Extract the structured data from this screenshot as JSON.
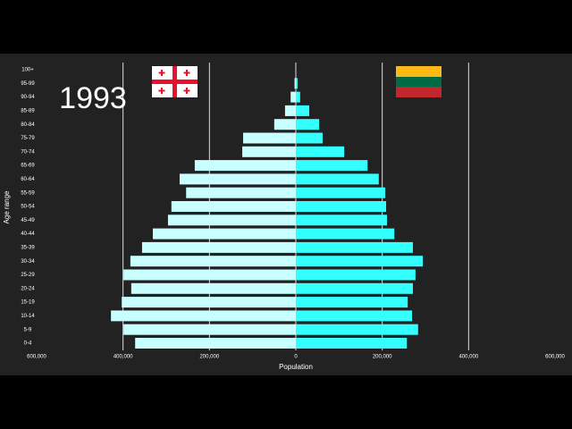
{
  "chart_data": {
    "type": "pyramid",
    "title": "1993",
    "xlabel": "Population",
    "ylabel": "Age range",
    "categories": [
      "0-4",
      "5-9",
      "10-14",
      "15-19",
      "20-24",
      "25-29",
      "30-34",
      "35-39",
      "40-44",
      "45-49",
      "50-54",
      "55-59",
      "60-64",
      "65-69",
      "70-74",
      "75-79",
      "80-84",
      "85-89",
      "90-94",
      "95-99",
      "100+"
    ],
    "series": [
      {
        "color": "#c8ffff",
        "values": [
          -372000,
          -399000,
          -428000,
          -403000,
          -381000,
          -399000,
          -383000,
          -356000,
          -331000,
          -296000,
          -288000,
          -254000,
          -269000,
          -234000,
          -124000,
          -122000,
          -50000,
          -25000,
          -12000,
          -3000,
          -500
        ]
      },
      {
        "color": "#33ffff",
        "values": [
          257000,
          283000,
          269000,
          259000,
          271000,
          277000,
          294000,
          271000,
          228000,
          211000,
          209000,
          207000,
          192000,
          166000,
          112000,
          62000,
          54000,
          31000,
          10000,
          4000,
          500
        ]
      }
    ],
    "xlim": [
      -600000,
      600000
    ],
    "xticks": [
      {
        "value": -600000,
        "label": "600,000"
      },
      {
        "value": -400000,
        "label": "400,000"
      },
      {
        "value": -200000,
        "label": "200,000"
      },
      0,
      {
        "value": 200000,
        "label": "200,000"
      },
      {
        "value": 400000,
        "label": "400,000"
      },
      {
        "value": 600000,
        "label": "600,000"
      }
    ],
    "grid": true
  }
}
